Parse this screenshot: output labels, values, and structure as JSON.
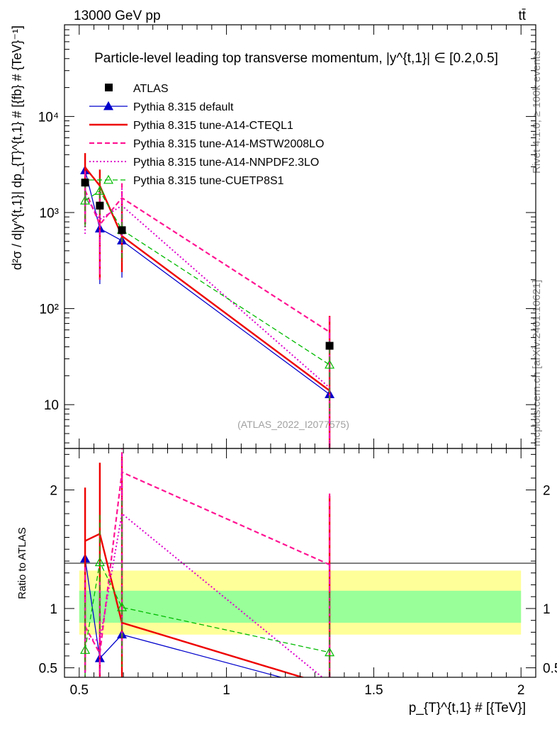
{
  "header": {
    "energy_label": "13000 GeV pp",
    "process_label": "tt̄"
  },
  "side_labels": {
    "rivet": "Rivet 4.1.0, ≥ 100k events",
    "mcplots": "mcplots.cern.ch [arXiv:2401.10621]"
  },
  "watermark": "(ATLAS_2022_I2077575)",
  "colors": {
    "atlas": "#000000",
    "default": "#0000cc",
    "cteql1": "#ee0000",
    "mstw": "#ff1493",
    "nnpdf": "#dd00cc",
    "cuetp": "#00bb00",
    "band_yellow": "#ffff99",
    "band_green": "#99ff99"
  },
  "chart_data": [
    {
      "type": "line",
      "title": "Particle-level leading top transverse momentum, |y^{t,1}| ∈ [0.2,0.5]",
      "ylabel": "d²σ / d|y^{t,1}| dp_{T}^{t,1} # [{fb} # {TeV}⁻¹]",
      "yscale": "log",
      "xlim": [
        0.45,
        2.05
      ],
      "ylim": [
        3.5,
        90000
      ],
      "y_ticks": [
        {
          "value": 10,
          "label": "10"
        },
        {
          "value": 100,
          "label": "10²"
        },
        {
          "value": 1000,
          "label": "10³"
        },
        {
          "value": 10000,
          "label": "10⁴"
        }
      ],
      "legend_position": "top-left",
      "data": {
        "name": "ATLAS",
        "x": [
          0.52,
          0.57,
          0.645,
          1.35
        ],
        "y": [
          2050,
          1180,
          655,
          41
        ],
        "err": [
          0,
          0,
          0,
          0
        ]
      },
      "series": [
        {
          "key": "default",
          "name": "Pythia 8.315 default",
          "style": "solid",
          "marker": "triangle",
          "x": [
            0.52,
            0.57,
            0.645,
            1.35
          ],
          "y": [
            2750,
            680,
            510,
            12.8
          ],
          "err_lo": [
            1900,
            500,
            300,
            12.5
          ],
          "err_hi": [
            1200,
            900,
            900,
            20
          ]
        },
        {
          "key": "cteql1",
          "name": "Pythia 8.315 tune-A14-CTEQL1",
          "style": "solid",
          "marker": "none",
          "x": [
            0.52,
            0.57,
            0.645,
            1.35
          ],
          "y": [
            2950,
            1900,
            570,
            14
          ],
          "err_lo": [
            2200,
            1700,
            330,
            13.5
          ],
          "err_hi": [
            1200,
            900,
            800,
            70
          ]
        },
        {
          "key": "mstw",
          "name": "Pythia 8.315 tune-A14-MSTW2008LO",
          "style": "dashed",
          "marker": "none",
          "x": [
            0.52,
            0.57,
            0.645,
            1.35
          ],
          "y": [
            1700,
            750,
            1420,
            57
          ],
          "err_lo": [
            1000,
            550,
            1000,
            55
          ],
          "err_hi": [
            1000,
            900,
            600,
            25
          ]
        },
        {
          "key": "nnpdf",
          "name": "Pythia 8.315 tune-A14-NNPDF2.3LO",
          "style": "dotted",
          "marker": "none",
          "x": [
            0.52,
            0.57,
            0.645,
            1.35
          ],
          "y": [
            1500,
            850,
            1180,
            15
          ],
          "err_lo": [
            900,
            600,
            800,
            14
          ],
          "err_hi": [
            900,
            700,
            600,
            40
          ]
        },
        {
          "key": "cuetp",
          "name": "Pythia 8.315 tune-CUETP8S1",
          "style": "dashed",
          "marker": "open-triangle",
          "x": [
            0.52,
            0.57,
            0.645,
            1.35
          ],
          "y": [
            1330,
            1680,
            660,
            26
          ],
          "err_lo": [
            650,
            800,
            350,
            18
          ],
          "err_hi": [
            700,
            600,
            500,
            20
          ]
        }
      ]
    },
    {
      "type": "line",
      "ylabel": "Ratio to ATLAS",
      "xlabel": "p_{T}^{t,1} # [{TeV}]",
      "xlim": [
        0.45,
        2.05
      ],
      "ylim": [
        0.42,
        2.35
      ],
      "y_ticks": [
        {
          "value": 0.5,
          "label": "0.5"
        },
        {
          "value": 1,
          "label": "1"
        },
        {
          "value": 2,
          "label": "2"
        }
      ],
      "x_ticks": [
        {
          "value": 0.5,
          "label": "0.5"
        },
        {
          "value": 1,
          "label": "1"
        },
        {
          "value": 1.5,
          "label": "1.5"
        },
        {
          "value": 2,
          "label": "2"
        }
      ],
      "bands": {
        "x_edges": [
          0.5,
          2.0
        ],
        "yellow": [
          0.78,
          1.32
        ],
        "green": [
          0.88,
          1.15
        ]
      },
      "series": [
        {
          "key": "default",
          "x": [
            0.52,
            0.57,
            0.645,
            1.35
          ],
          "y": [
            1.42,
            0.58,
            0.78,
            0.31
          ],
          "err_lo": [
            0.9,
            0.2,
            0.4,
            0.2
          ],
          "err_hi": [
            0.5,
            0.2,
            1.5,
            0.3
          ]
        },
        {
          "key": "cteql1",
          "x": [
            0.52,
            0.57,
            0.645,
            1.35
          ],
          "y": [
            1.57,
            1.63,
            0.88,
            0.35
          ],
          "err_lo": [
            1.1,
            1.2,
            0.5,
            0.3
          ],
          "err_hi": [
            0.45,
            0.6,
            1.4,
            1.6
          ]
        },
        {
          "key": "mstw",
          "x": [
            0.52,
            0.57,
            0.645,
            1.35
          ],
          "y": [
            0.85,
            0.62,
            2.15,
            1.37
          ],
          "err_lo": [
            0.5,
            0.2,
            1.5,
            1.0
          ],
          "err_hi": [
            0.5,
            0.6,
            0.3,
            0.6
          ]
        },
        {
          "key": "nnpdf",
          "x": [
            0.52,
            0.57,
            0.645,
            1.35
          ],
          "y": [
            0.75,
            0.73,
            1.8,
            0.37
          ],
          "err_lo": [
            0.4,
            0.3,
            1.2,
            0.3
          ],
          "err_hi": [
            0.5,
            0.5,
            0.5,
            1.0
          ]
        },
        {
          "key": "cuetp",
          "x": [
            0.52,
            0.57,
            0.645,
            1.35
          ],
          "y": [
            0.65,
            1.39,
            1.01,
            0.63
          ],
          "err_lo": [
            0.25,
            0.6,
            0.5,
            0.4
          ],
          "err_hi": [
            0.4,
            0.4,
            0.9,
            0.5
          ]
        }
      ]
    }
  ]
}
